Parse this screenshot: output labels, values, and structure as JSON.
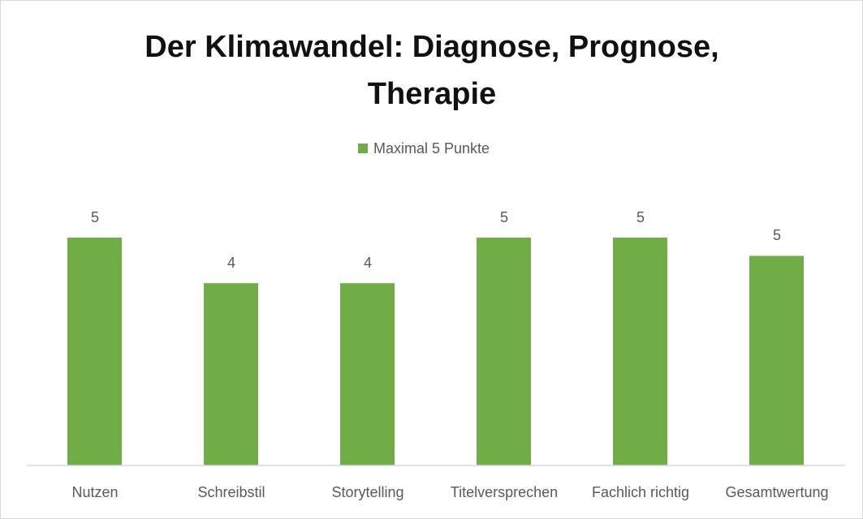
{
  "chart_data": {
    "type": "bar",
    "title": "Der Klimawandel: Diagnose, Prognose, Therapie",
    "categories": [
      "Nutzen",
      "Schreibstil",
      "Storytelling",
      "Titelversprechen",
      "Fachlich richtig",
      "Gesamtwertung"
    ],
    "series": [
      {
        "name": "Maximal 5 Punkte",
        "color": "#70ad47",
        "values": [
          5,
          4,
          4,
          5,
          5,
          4.6
        ],
        "value_labels": [
          "5",
          "4",
          "4",
          "5",
          "5",
          "5"
        ]
      }
    ],
    "ylim": [
      0,
      5
    ],
    "legend": "top"
  }
}
